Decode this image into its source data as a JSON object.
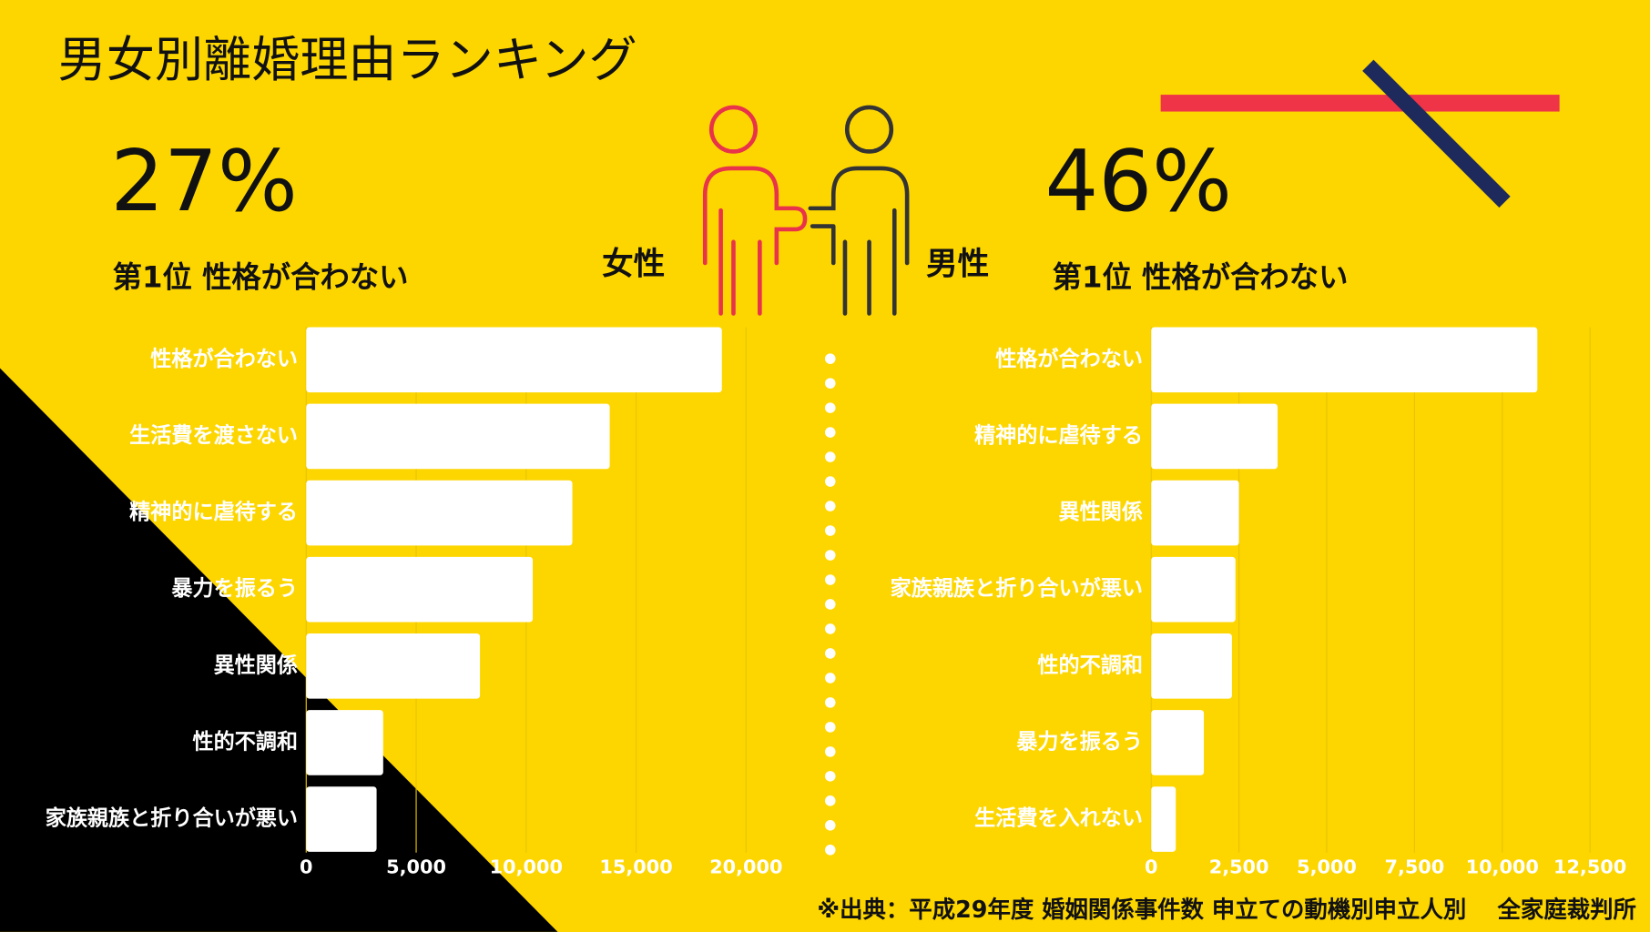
{
  "header": {
    "title": "男女別離婚理由ランキング"
  },
  "source": "※出典：平成29年度 婚姻関係事件数 申立ての動機別申立人別　 全家庭裁判所",
  "chart_data": [
    {
      "type": "bar",
      "orientation": "horizontal",
      "label": "女性",
      "headline": "27%",
      "rank_label": "第1位 性格が合わない",
      "categories": [
        "性格が合わない",
        "生活費を渡さない",
        "精神的に虐待する",
        "暴力を振るう",
        "異性関係",
        "性的不調和",
        "家族親族と折り合いが悪い"
      ],
      "values": [
        18900,
        13800,
        12100,
        10300,
        7900,
        3500,
        3200
      ],
      "color": "#ffffff",
      "xlim": [
        0,
        20000
      ],
      "xticks": [
        0,
        {
          "value": 5000,
          "label": "5,000"
        },
        {
          "value": 10000,
          "label": "10,000"
        },
        {
          "value": 15000,
          "label": "15,000"
        },
        {
          "value": 20000,
          "label": "20,000"
        }
      ],
      "grid": true
    },
    {
      "type": "bar",
      "orientation": "horizontal",
      "label": "男性",
      "headline": "46%",
      "rank_label": "第1位 性格が合わない",
      "categories": [
        "性格が合わない",
        "精神的に虐待する",
        "異性関係",
        "家族親族と折り合いが悪い",
        "性的不調和",
        "暴力を振るう",
        "生活費を入れない"
      ],
      "values": [
        11000,
        3600,
        2500,
        2400,
        2300,
        1500,
        700
      ],
      "color": "#ffffff",
      "xlim": [
        0,
        12500
      ],
      "xticks": [
        0,
        {
          "value": 2500,
          "label": "2,500"
        },
        {
          "value": 5000,
          "label": "5,000"
        },
        {
          "value": 7500,
          "label": "7,500"
        },
        {
          "value": 10000,
          "label": "10,000"
        },
        {
          "value": 12500,
          "label": "12,500"
        }
      ],
      "grid": true
    }
  ]
}
